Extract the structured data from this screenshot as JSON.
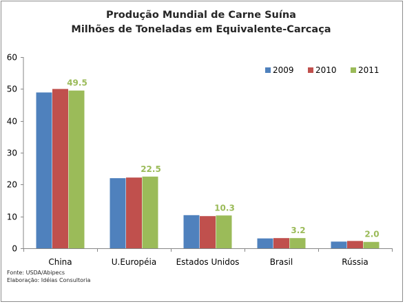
{
  "chart_data": {
    "type": "bar",
    "title": "Produção Mundial de Carne Suína",
    "subtitle": "Milhões de Toneladas em Equivalente-Carcaça",
    "categories": [
      "China",
      "U.Européia",
      "Estados Unidos",
      "Brasil",
      "Rússia"
    ],
    "series": [
      {
        "name": "2009",
        "color": "#4f81bd",
        "values": [
          48.9,
          22.0,
          10.4,
          3.1,
          2.1
        ]
      },
      {
        "name": "2010",
        "color": "#c0504d",
        "values": [
          50.0,
          22.2,
          10.1,
          3.2,
          2.3
        ]
      },
      {
        "name": "2011",
        "color": "#9bbb59",
        "values": [
          49.5,
          22.5,
          10.3,
          3.2,
          2.0
        ]
      }
    ],
    "data_labels": {
      "series": "2011",
      "labels": [
        "49.5",
        "22.5",
        "10.3",
        "3.2",
        "2.0"
      ],
      "color": "#9bbb59"
    },
    "ylim": [
      0,
      60
    ],
    "y_ticks": [
      0,
      10,
      20,
      30,
      40,
      50,
      60
    ],
    "xlabel": "",
    "ylabel": "",
    "grid": false,
    "legend_position": "top-right"
  },
  "notes": {
    "source": "Fonte: USDA/Abipecs",
    "prepared_by": "Elaboração: Idéias Consultoria"
  }
}
